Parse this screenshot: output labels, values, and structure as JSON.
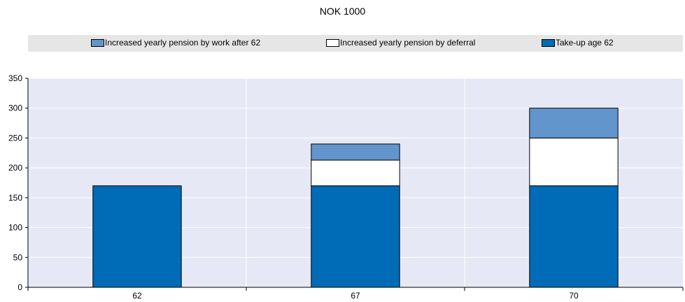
{
  "chart_data": {
    "type": "bar",
    "stacked": true,
    "title": "NOK 1000",
    "xlabel": "",
    "ylabel": "",
    "categories": [
      "62",
      "67",
      "70"
    ],
    "series": [
      {
        "name": "Take-up age 62",
        "values": [
          170,
          170,
          170
        ],
        "color": "#006bb6"
      },
      {
        "name": "Increased yearly pension by deferral",
        "values": [
          0,
          43,
          80
        ],
        "color": "#ffffff"
      },
      {
        "name": "Increased yearly pension by work after 62",
        "values": [
          0,
          27,
          50
        ],
        "color": "#6395cd"
      }
    ],
    "legend_order": [
      2,
      1,
      0
    ],
    "ylim": [
      0,
      350
    ],
    "yticks": [
      0,
      50,
      100,
      150,
      200,
      250,
      300,
      350
    ],
    "grid": true,
    "legend_position": "top",
    "plot_background": "#e6e9f5"
  }
}
